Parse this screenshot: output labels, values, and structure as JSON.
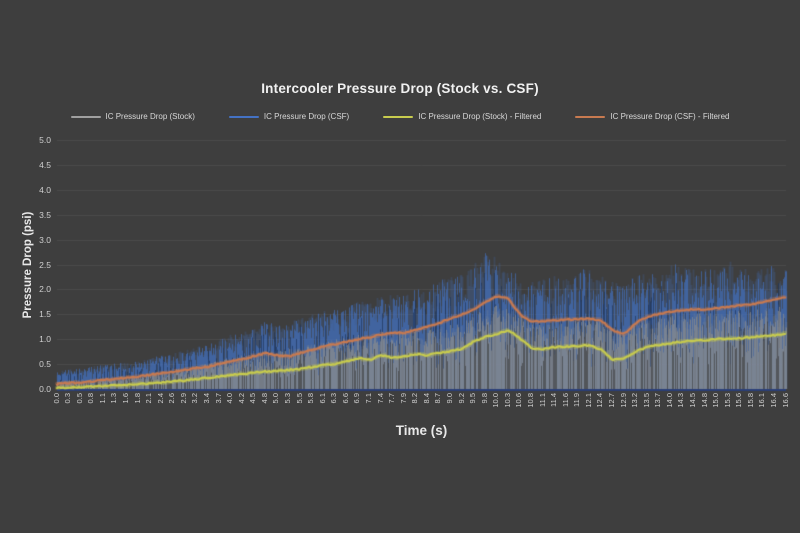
{
  "colors": {
    "background": "#3e3e3e",
    "grid": "#4b4b4b",
    "tick_text": "#d0d0d0",
    "title_text": "#f1f1f1",
    "baseline": "#2a3f78"
  },
  "chart_data": {
    "type": "line",
    "title": "Intercooler Pressure Drop (Stock vs. CSF)",
    "xlabel": "Time (s)",
    "ylabel": "Pressure Drop (psi)",
    "ylim": [
      0,
      5
    ],
    "grid": "horizontal",
    "legend_position": "top",
    "yticks": [
      "0.0",
      "0.5",
      "1.0",
      "1.5",
      "2.0",
      "2.5",
      "3.0",
      "3.5",
      "4.0",
      "4.5",
      "5.0"
    ],
    "xticks": [
      "0.0",
      "0.3",
      "0.5",
      "0.8",
      "1.1",
      "1.3",
      "1.6",
      "1.8",
      "2.1",
      "2.4",
      "2.6",
      "2.9",
      "3.2",
      "3.4",
      "3.7",
      "4.0",
      "4.2",
      "4.5",
      "4.8",
      "5.0",
      "5.3",
      "5.5",
      "5.8",
      "6.1",
      "6.3",
      "6.6",
      "6.9",
      "7.1",
      "7.4",
      "7.7",
      "7.9",
      "8.2",
      "8.4",
      "8.7",
      "9.0",
      "9.2",
      "9.5",
      "9.8",
      "10.0",
      "10.3",
      "10.6",
      "10.8",
      "11.1",
      "11.4",
      "11.6",
      "11.9",
      "12.1",
      "12.4",
      "12.7",
      "12.9",
      "13.2",
      "13.5",
      "13.7",
      "14.0",
      "14.3",
      "14.5",
      "14.8",
      "15.0",
      "15.3",
      "15.6",
      "15.8",
      "16.1",
      "16.4",
      "16.6"
    ],
    "legend": [
      {
        "label": "IC Pressure Drop (Stock)",
        "color": "#a0a0a0"
      },
      {
        "label": "IC Pressure Drop (CSF)",
        "color": "#4472c4"
      },
      {
        "label": "IC Pressure Drop (Stock) - Filtered",
        "color": "#c8cc4e"
      },
      {
        "label": "IC Pressure Drop (CSF) - Filtered",
        "color": "#c87a50"
      }
    ],
    "series": [
      {
        "name": "IC Pressure Drop (CSF)",
        "render": "noisy",
        "color": "#4472c4",
        "envelope_top": [
          0.35,
          0.4,
          0.42,
          0.45,
          0.5,
          0.52,
          0.55,
          0.58,
          0.62,
          0.68,
          0.72,
          0.78,
          0.85,
          0.9,
          1.0,
          1.1,
          1.2,
          1.3,
          1.35,
          1.3,
          1.35,
          1.45,
          1.5,
          1.6,
          1.62,
          1.7,
          1.75,
          1.8,
          1.85,
          1.9,
          1.9,
          2.0,
          2.05,
          2.2,
          2.25,
          2.3,
          2.5,
          2.85,
          2.6,
          2.45,
          2.25,
          2.15,
          2.2,
          2.3,
          2.25,
          2.4,
          2.45,
          2.3,
          2.15,
          2.1,
          2.3,
          2.4,
          2.35,
          2.55,
          2.45,
          2.4,
          2.45,
          2.4,
          2.6,
          2.45,
          2.4,
          2.55,
          2.45,
          2.4
        ]
      },
      {
        "name": "IC Pressure Drop (Stock)",
        "render": "noisy",
        "color": "#909090",
        "envelope_top": [
          0.15,
          0.17,
          0.18,
          0.2,
          0.22,
          0.24,
          0.26,
          0.28,
          0.32,
          0.36,
          0.4,
          0.44,
          0.48,
          0.52,
          0.58,
          0.62,
          0.68,
          0.74,
          0.78,
          0.76,
          0.8,
          0.85,
          0.9,
          0.95,
          1.0,
          1.05,
          1.1,
          1.12,
          1.18,
          1.15,
          1.2,
          1.25,
          1.22,
          1.3,
          1.32,
          1.35,
          1.5,
          1.6,
          1.7,
          1.65,
          1.5,
          1.4,
          1.38,
          1.42,
          1.42,
          1.45,
          1.48,
          1.4,
          1.25,
          1.2,
          1.35,
          1.45,
          1.48,
          1.52,
          1.55,
          1.55,
          1.58,
          1.58,
          1.6,
          1.58,
          1.6,
          1.62,
          1.65,
          1.68
        ]
      },
      {
        "name": "IC Pressure Drop (Stock) - Filtered",
        "render": "line",
        "color": "#c8cc4e",
        "values": [
          0.02,
          0.03,
          0.04,
          0.05,
          0.06,
          0.07,
          0.08,
          0.1,
          0.11,
          0.13,
          0.15,
          0.17,
          0.2,
          0.22,
          0.25,
          0.28,
          0.3,
          0.33,
          0.35,
          0.36,
          0.38,
          0.4,
          0.44,
          0.48,
          0.5,
          0.55,
          0.62,
          0.58,
          0.68,
          0.62,
          0.66,
          0.7,
          0.68,
          0.72,
          0.76,
          0.8,
          0.95,
          1.05,
          1.1,
          1.18,
          1.02,
          0.82,
          0.8,
          0.84,
          0.85,
          0.86,
          0.88,
          0.8,
          0.58,
          0.62,
          0.75,
          0.85,
          0.88,
          0.92,
          0.95,
          0.97,
          0.98,
          1.0,
          1.02,
          1.02,
          1.04,
          1.06,
          1.08,
          1.12
        ]
      },
      {
        "name": "IC Pressure Drop (CSF) - Filtered",
        "render": "line",
        "color": "#c87a50",
        "values": [
          0.1,
          0.12,
          0.13,
          0.15,
          0.18,
          0.2,
          0.23,
          0.25,
          0.28,
          0.32,
          0.35,
          0.38,
          0.42,
          0.45,
          0.5,
          0.55,
          0.6,
          0.66,
          0.72,
          0.68,
          0.65,
          0.72,
          0.78,
          0.85,
          0.9,
          0.95,
          1.0,
          1.04,
          1.1,
          1.12,
          1.13,
          1.18,
          1.25,
          1.32,
          1.42,
          1.5,
          1.6,
          1.75,
          1.86,
          1.82,
          1.5,
          1.36,
          1.36,
          1.38,
          1.4,
          1.4,
          1.42,
          1.38,
          1.18,
          1.1,
          1.32,
          1.45,
          1.5,
          1.55,
          1.58,
          1.6,
          1.6,
          1.62,
          1.65,
          1.68,
          1.7,
          1.75,
          1.8,
          1.85
        ]
      }
    ]
  }
}
